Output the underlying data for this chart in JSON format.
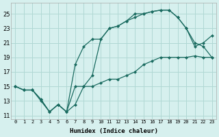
{
  "title": "",
  "xlabel": "Humidex (Indice chaleur)",
  "ylabel": "",
  "bg_color": "#d6f0ee",
  "grid_color": "#b0d8d4",
  "line_color": "#1a6b60",
  "x_ticks": [
    0,
    1,
    2,
    3,
    4,
    5,
    6,
    7,
    8,
    9,
    10,
    11,
    12,
    13,
    14,
    15,
    16,
    17,
    18,
    19,
    20,
    21,
    22,
    23
  ],
  "y_ticks": [
    11,
    13,
    15,
    17,
    19,
    21,
    23,
    25
  ],
  "xlim": [
    -0.5,
    23.5
  ],
  "ylim": [
    10.5,
    26.5
  ],
  "line1_x": [
    0,
    1,
    2,
    3,
    4,
    5,
    6,
    7,
    8,
    9,
    10,
    11,
    12,
    13,
    14,
    15,
    16,
    17,
    18,
    19,
    20,
    21,
    22,
    23
  ],
  "line1_y": [
    15,
    14.5,
    14.5,
    13,
    11.5,
    12.5,
    11.5,
    12.5,
    15,
    15,
    15.5,
    16,
    16,
    16.5,
    17,
    18,
    18.5,
    19,
    19,
    19,
    19,
    19.2,
    19,
    19
  ],
  "line2_x": [
    0,
    1,
    2,
    3,
    4,
    5,
    6,
    7,
    8,
    9,
    10,
    11,
    12,
    13,
    14,
    15,
    16,
    17,
    18,
    19,
    20,
    21,
    22,
    23
  ],
  "line2_y": [
    15,
    14.5,
    14.5,
    13.2,
    11.5,
    12.5,
    11.5,
    18,
    20.5,
    21.5,
    21.5,
    23,
    23.3,
    24,
    25,
    25,
    25.3,
    25.5,
    25.5,
    24.5,
    23,
    21,
    20.5,
    19
  ],
  "line3_x": [
    0,
    1,
    2,
    3,
    4,
    5,
    6,
    7,
    8,
    9,
    10,
    11,
    12,
    13,
    14,
    15,
    16,
    17,
    18,
    19,
    20,
    21,
    22,
    23
  ],
  "line3_y": [
    15,
    14.5,
    14.5,
    13.2,
    11.5,
    12.5,
    11.5,
    15,
    15,
    16.5,
    21.5,
    23,
    23.3,
    24,
    24.5,
    25,
    25.3,
    25.5,
    25.5,
    24.5,
    23,
    20.5,
    21,
    22
  ]
}
